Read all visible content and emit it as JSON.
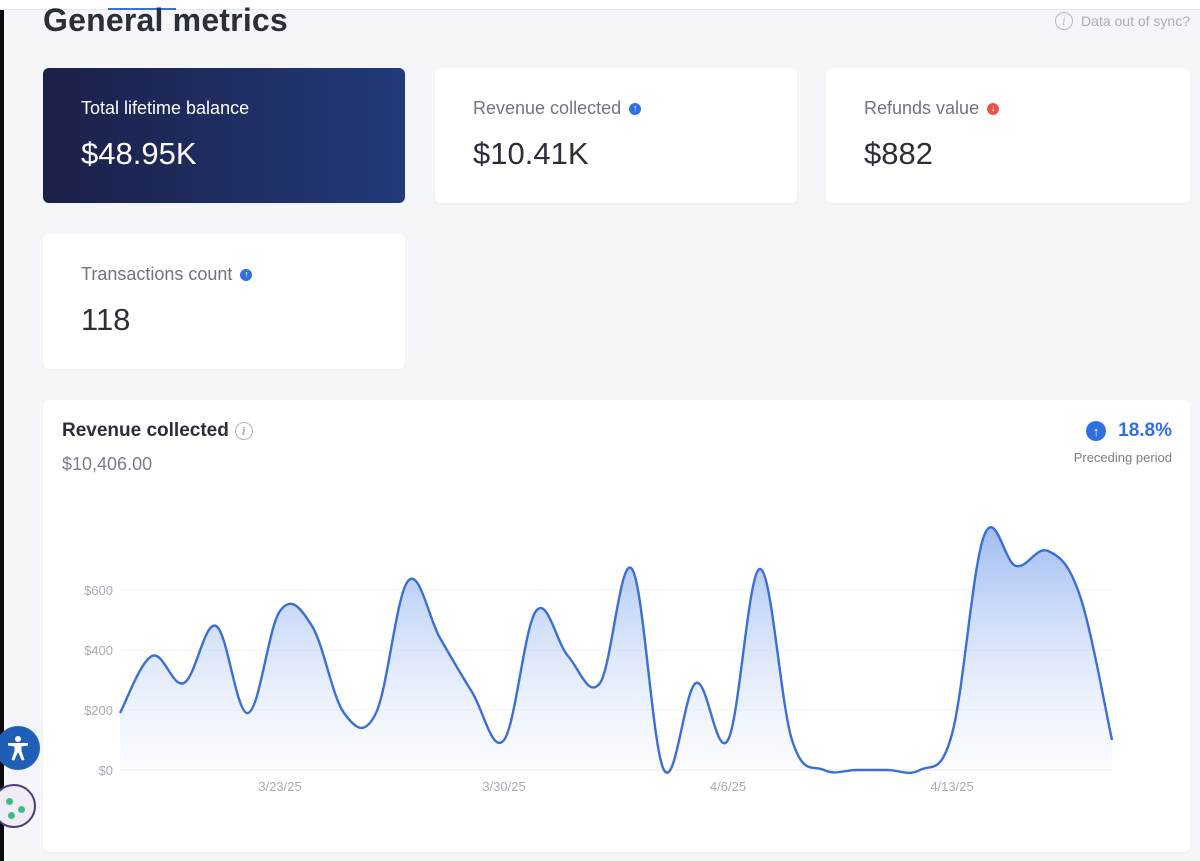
{
  "header": {
    "title": "General metrics",
    "sync_notice": "Data out of sync?"
  },
  "cards": [
    {
      "label": "Total lifetime balance",
      "value": "$48.95K",
      "trend": null
    },
    {
      "label": "Revenue collected",
      "value": "$10.41K",
      "trend": "up"
    },
    {
      "label": "Refunds value",
      "value": "$882",
      "trend": "down"
    },
    {
      "label": "Transactions count",
      "value": "118",
      "trend": "up"
    }
  ],
  "chart_panel": {
    "title": "Revenue collected",
    "total": "$10,406.00",
    "delta": "18.8%",
    "delta_direction": "up",
    "delta_caption": "Preceding period"
  },
  "colors": {
    "accent": "#2f6fe4",
    "line": "#3b6fd6",
    "dark_card_start": "#1b2048",
    "dark_card_end": "#223a7a",
    "down": "#e5574a"
  },
  "chart_data": {
    "type": "area",
    "ylim": [
      0,
      600
    ],
    "yticks": [
      "$0",
      "$200",
      "$400",
      "$600"
    ],
    "xticks": [
      {
        "label": "3/23/25",
        "x": 5
      },
      {
        "label": "3/30/25",
        "x": 12
      },
      {
        "label": "4/6/25",
        "x": 19
      },
      {
        "label": "4/13/25",
        "x": 26
      }
    ],
    "x": [
      0,
      1,
      2,
      3,
      4,
      5,
      6,
      7,
      8,
      9,
      10,
      11,
      12,
      13,
      14,
      15,
      16,
      17,
      18,
      19,
      20,
      21,
      22,
      23,
      24,
      25,
      26,
      27,
      28,
      29,
      30,
      31
    ],
    "values": [
      190,
      380,
      290,
      480,
      190,
      530,
      480,
      190,
      190,
      630,
      440,
      260,
      100,
      530,
      380,
      290,
      670,
      0,
      290,
      100,
      670,
      100,
      0,
      0,
      0,
      0,
      120,
      780,
      680,
      730,
      580,
      100
    ],
    "grid": true,
    "legend": "none"
  }
}
